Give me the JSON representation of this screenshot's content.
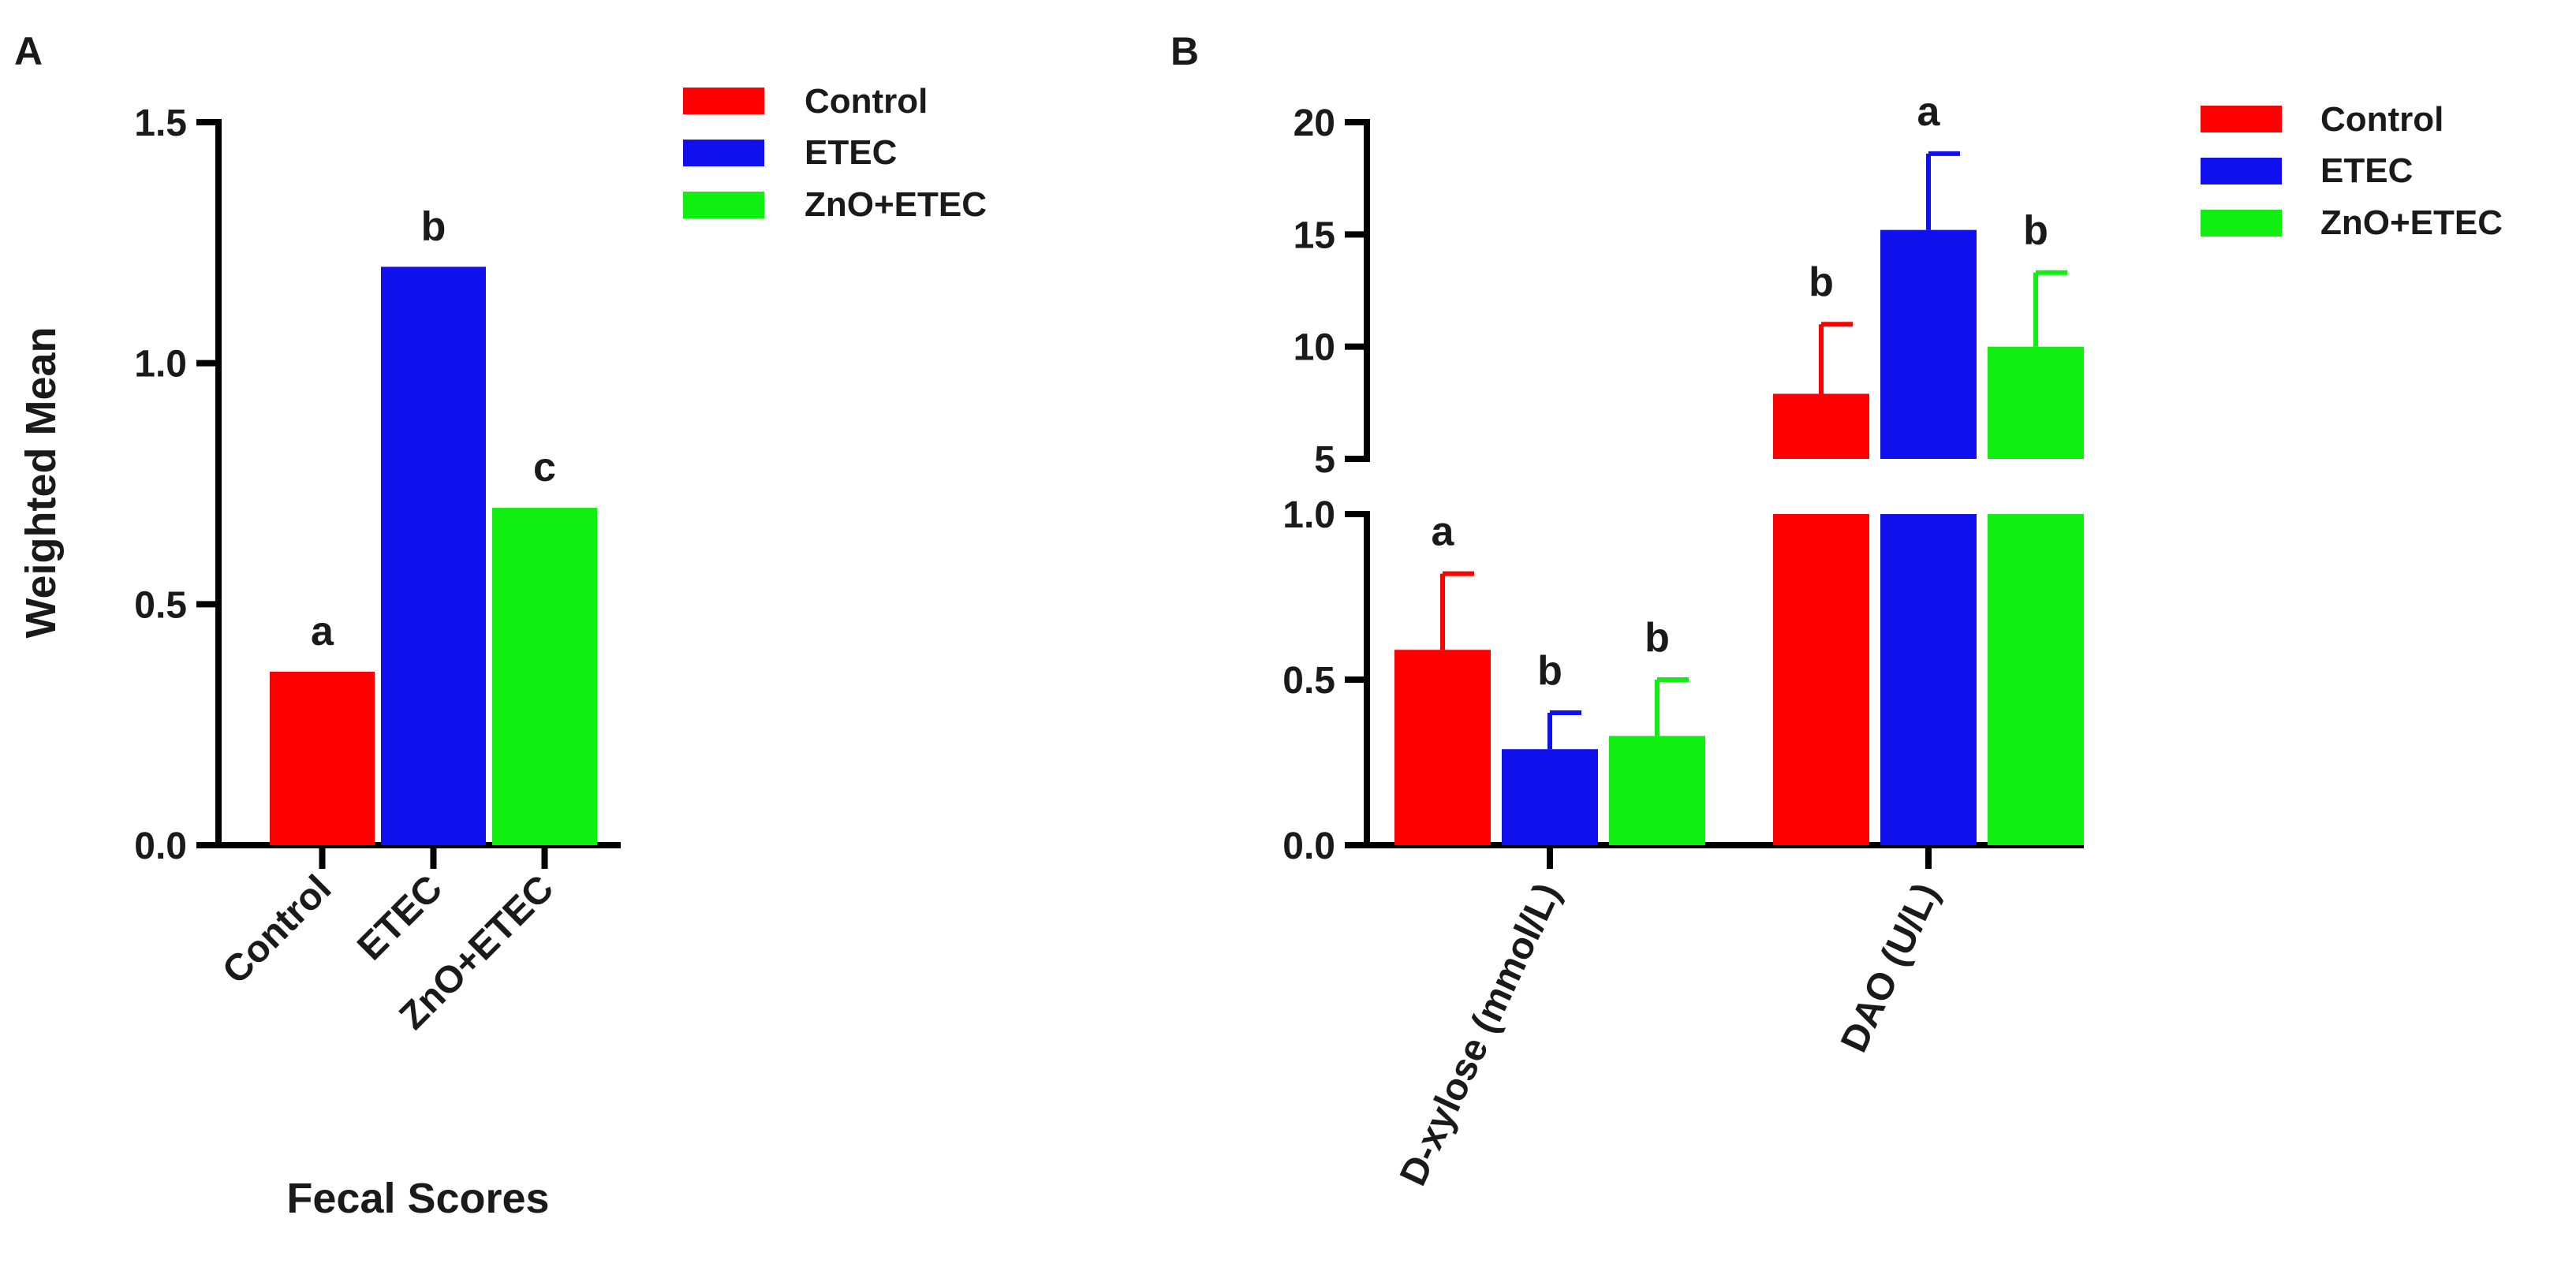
{
  "colors": {
    "control": "#ff0000",
    "etec": "#1010ee",
    "zno_etec": "#11ee11"
  },
  "chart_data": [
    {
      "panel_label": "A",
      "type": "bar",
      "title": "",
      "xlabel": "Fecal Scores",
      "ylabel": "Weighted Mean",
      "ylim": [
        0,
        1.5
      ],
      "yticks": [
        {
          "value": 0.0,
          "label": "0.0"
        },
        {
          "value": 0.5,
          "label": "0.5"
        },
        {
          "value": 1.0,
          "label": "1.0"
        },
        {
          "value": 1.5,
          "label": "1.5"
        }
      ],
      "categories": [
        "Control",
        "ETEC",
        "ZnO+ETEC"
      ],
      "values": [
        0.36,
        1.2,
        0.7
      ],
      "letters": [
        "a",
        "b",
        "c"
      ],
      "legend": {
        "position": "top-right",
        "entries": [
          {
            "label": "Control",
            "color_key": "control"
          },
          {
            "label": "ETEC",
            "color_key": "etec"
          },
          {
            "label": "ZnO+ETEC",
            "color_key": "zno_etec"
          }
        ]
      }
    },
    {
      "panel_label": "B",
      "type": "bar",
      "title": "",
      "xlabel": "",
      "ylabel": "",
      "axis_break": {
        "lower_range": [
          0,
          1.0
        ],
        "upper_range": [
          5,
          20
        ]
      },
      "yticks_lower": [
        {
          "value": 0.0,
          "label": "0.0"
        },
        {
          "value": 0.5,
          "label": "0.5"
        },
        {
          "value": 1.0,
          "label": "1.0"
        }
      ],
      "yticks_upper": [
        {
          "value": 5,
          "label": "5"
        },
        {
          "value": 10,
          "label": "10"
        },
        {
          "value": 15,
          "label": "15"
        },
        {
          "value": 20,
          "label": "20"
        }
      ],
      "categories": [
        "D-xylose (mmol/L)",
        "DAO (U/L)"
      ],
      "series": [
        {
          "name": "Control",
          "color_key": "control",
          "values": [
            0.59,
            7.9
          ],
          "errors": [
            0.23,
            3.1
          ],
          "letters": [
            "a",
            "b"
          ]
        },
        {
          "name": "ETEC",
          "color_key": "etec",
          "values": [
            0.29,
            15.2
          ],
          "errors": [
            0.11,
            3.4
          ],
          "letters": [
            "b",
            "a"
          ]
        },
        {
          "name": "ZnO+ETEC",
          "color_key": "zno_etec",
          "values": [
            0.33,
            10.0
          ],
          "errors": [
            0.17,
            3.3
          ],
          "letters": [
            "b",
            "b"
          ]
        }
      ],
      "legend": {
        "position": "top-right",
        "entries": [
          {
            "label": "Control",
            "color_key": "control"
          },
          {
            "label": "ETEC",
            "color_key": "etec"
          },
          {
            "label": "ZnO+ETEC",
            "color_key": "zno_etec"
          }
        ]
      }
    }
  ]
}
